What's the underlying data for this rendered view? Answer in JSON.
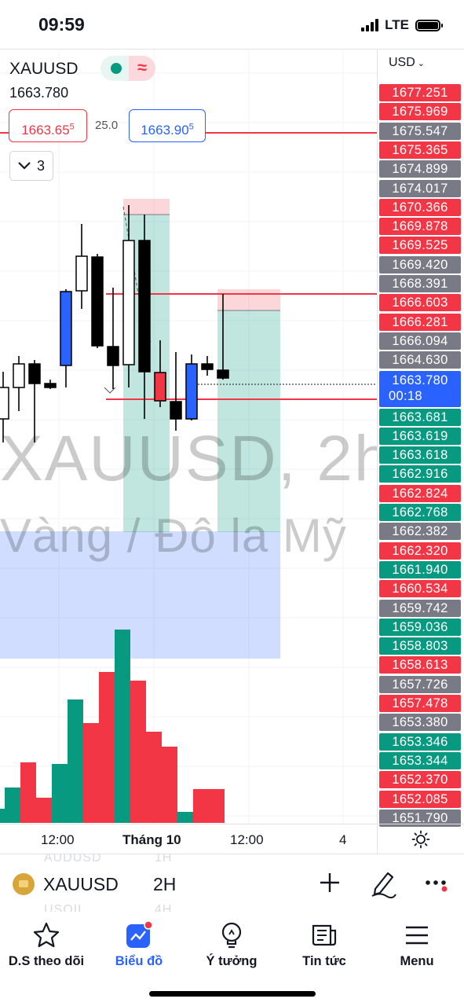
{
  "status_bar": {
    "time": "09:59",
    "network": "LTE"
  },
  "header": {
    "symbol": "XAUUSD",
    "last_price": "1663.780",
    "sell_price": "1663.655",
    "spread": "25.0",
    "buy_price": "1663.905",
    "indicators_count": "3"
  },
  "watermark": {
    "symbol": "XAUUSD, 2h",
    "description": "Vàng / Đô la Mỹ"
  },
  "price_scale": {
    "currency": "USD",
    "labels": [
      {
        "value": "1677.251",
        "color": "red"
      },
      {
        "value": "1675.969",
        "color": "red"
      },
      {
        "value": "1675.547",
        "color": "gray"
      },
      {
        "value": "1675.365",
        "color": "red"
      },
      {
        "value": "1674.899",
        "color": "gray"
      },
      {
        "value": "1674.017",
        "color": "gray"
      },
      {
        "value": "1670.366",
        "color": "red"
      },
      {
        "value": "1669.878",
        "color": "red"
      },
      {
        "value": "1669.525",
        "color": "red"
      },
      {
        "value": "1669.420",
        "color": "gray"
      },
      {
        "value": "1668.391",
        "color": "gray"
      },
      {
        "value": "1666.603",
        "color": "red"
      },
      {
        "value": "1666.281",
        "color": "red"
      },
      {
        "value": "1666.094",
        "color": "gray"
      },
      {
        "value": "1664.630",
        "color": "gray"
      },
      {
        "value": "1663.780",
        "color": "blue",
        "extra": "00:18"
      },
      {
        "value": "1663.681",
        "color": "green"
      },
      {
        "value": "1663.619",
        "color": "green"
      },
      {
        "value": "1663.618",
        "color": "green"
      },
      {
        "value": "1662.916",
        "color": "green"
      },
      {
        "value": "1662.824",
        "color": "red"
      },
      {
        "value": "1662.768",
        "color": "green"
      },
      {
        "value": "1662.382",
        "color": "gray"
      },
      {
        "value": "1662.320",
        "color": "red"
      },
      {
        "value": "1661.940",
        "color": "green"
      },
      {
        "value": "1660.534",
        "color": "red"
      },
      {
        "value": "1659.742",
        "color": "gray"
      },
      {
        "value": "1659.036",
        "color": "green"
      },
      {
        "value": "1658.803",
        "color": "green"
      },
      {
        "value": "1658.613",
        "color": "red"
      },
      {
        "value": "1657.726",
        "color": "gray"
      },
      {
        "value": "1657.478",
        "color": "red"
      },
      {
        "value": "1653.380",
        "color": "gray"
      },
      {
        "value": "1653.346",
        "color": "green"
      },
      {
        "value": "1653.344",
        "color": "green"
      },
      {
        "value": "1652.370",
        "color": "red"
      },
      {
        "value": "1652.085",
        "color": "red"
      },
      {
        "value": "1651.790",
        "color": "gray"
      }
    ]
  },
  "time_axis": {
    "labels": [
      "12:00",
      "Tháng 10",
      "12:00",
      "4"
    ]
  },
  "symbol_bar": {
    "symbol": "XAUUSD",
    "interval": "2H",
    "ghost_symbols": [
      "AUDUSD",
      "USOIL"
    ],
    "ghost_intervals": [
      "1H",
      "4H"
    ]
  },
  "bottom_nav": {
    "items": [
      {
        "label": "D.S theo dõi",
        "icon": "star-icon"
      },
      {
        "label": "Biểu đồ",
        "icon": "chart-icon",
        "active": true
      },
      {
        "label": "Ý tưởng",
        "icon": "lightbulb-icon"
      },
      {
        "label": "Tin tức",
        "icon": "news-icon"
      },
      {
        "label": "Menu",
        "icon": "menu-icon"
      }
    ]
  },
  "colors": {
    "up": "#089981",
    "down": "#f23645",
    "accent": "#2962ff",
    "up_candle": "#ffffff",
    "down_candle": "#000000"
  }
}
